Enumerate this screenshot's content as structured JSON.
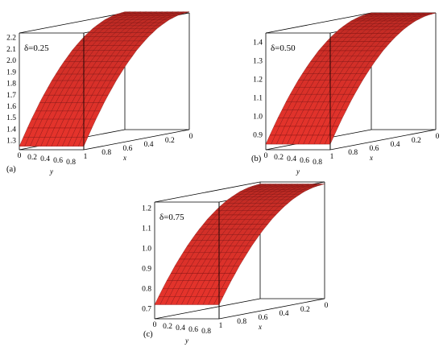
{
  "chart_data": [
    {
      "type": "surface",
      "panel_label": "(a)",
      "annotation": "δ=0.25",
      "xlabel": "x",
      "ylabel": "y",
      "x_ticks": [
        "1",
        "0.8",
        "0.6",
        "0.4",
        "0.2",
        "0"
      ],
      "y_ticks": [
        "0",
        "0.2",
        "0.4",
        "0.6",
        "0.8"
      ],
      "z_ticks": [
        "1.3",
        "1.4",
        "1.5",
        "1.6",
        "1.7",
        "1.8",
        "1.9",
        "2.0",
        "2.1",
        "2.2"
      ],
      "zlim": [
        1.22,
        2.24
      ],
      "x_range": [
        0,
        1
      ],
      "y_range": [
        0,
        1
      ],
      "surface": {
        "x": [
          0,
          0.1,
          0.2,
          0.3,
          0.4,
          0.5,
          0.6,
          0.7,
          0.8,
          0.9,
          1.0
        ],
        "z_at_x": [
          2.25,
          2.24,
          2.21,
          2.16,
          2.09,
          2.0,
          1.89,
          1.76,
          1.61,
          1.44,
          1.25
        ],
        "note": "surface independent of y"
      },
      "surface_color": "#e8342c",
      "grid_color": "#7a1010"
    },
    {
      "type": "surface",
      "panel_label": "(b)",
      "annotation": "δ=0.50",
      "xlabel": "x",
      "ylabel": "y",
      "x_ticks": [
        "1",
        "0.8",
        "0.6",
        "0.4",
        "0.2",
        "0"
      ],
      "y_ticks": [
        "0",
        "0.2",
        "0.4",
        "0.6",
        "0.8"
      ],
      "z_ticks": [
        "0.9",
        "1.0",
        "1.1",
        "1.2",
        "1.3",
        "1.4"
      ],
      "zlim": [
        0.82,
        1.45
      ],
      "x_range": [
        0,
        1
      ],
      "y_range": [
        0,
        1
      ],
      "surface": {
        "x": [
          0,
          0.1,
          0.2,
          0.3,
          0.4,
          0.5,
          0.6,
          0.7,
          0.8,
          0.9,
          1.0
        ],
        "z_at_x": [
          1.45,
          1.444,
          1.426,
          1.396,
          1.354,
          1.3,
          1.234,
          1.156,
          1.066,
          0.964,
          0.85
        ],
        "note": "surface independent of y"
      },
      "surface_color": "#e8342c",
      "grid_color": "#7a1010"
    },
    {
      "type": "surface",
      "panel_label": "(c)",
      "annotation": "δ=0.75",
      "xlabel": "x",
      "ylabel": "y",
      "x_ticks": [
        "1",
        "0.8",
        "0.6",
        "0.4",
        "0.2",
        "0"
      ],
      "y_ticks": [
        "0",
        "0.2",
        "0.4",
        "0.6",
        "0.8"
      ],
      "z_ticks": [
        "0.7",
        "0.8",
        "0.9",
        "1.0",
        "1.1",
        "1.2"
      ],
      "zlim": [
        0.65,
        1.23
      ],
      "x_range": [
        0,
        1
      ],
      "y_range": [
        0,
        1
      ],
      "surface": {
        "x": [
          0,
          0.1,
          0.2,
          0.3,
          0.4,
          0.5,
          0.6,
          0.7,
          0.8,
          0.9,
          1.0
        ],
        "z_at_x": [
          1.22,
          1.215,
          1.2,
          1.175,
          1.14,
          1.095,
          1.04,
          0.975,
          0.9,
          0.815,
          0.72
        ],
        "note": "surface independent of y"
      },
      "surface_color": "#e8342c",
      "grid_color": "#7a1010"
    }
  ]
}
